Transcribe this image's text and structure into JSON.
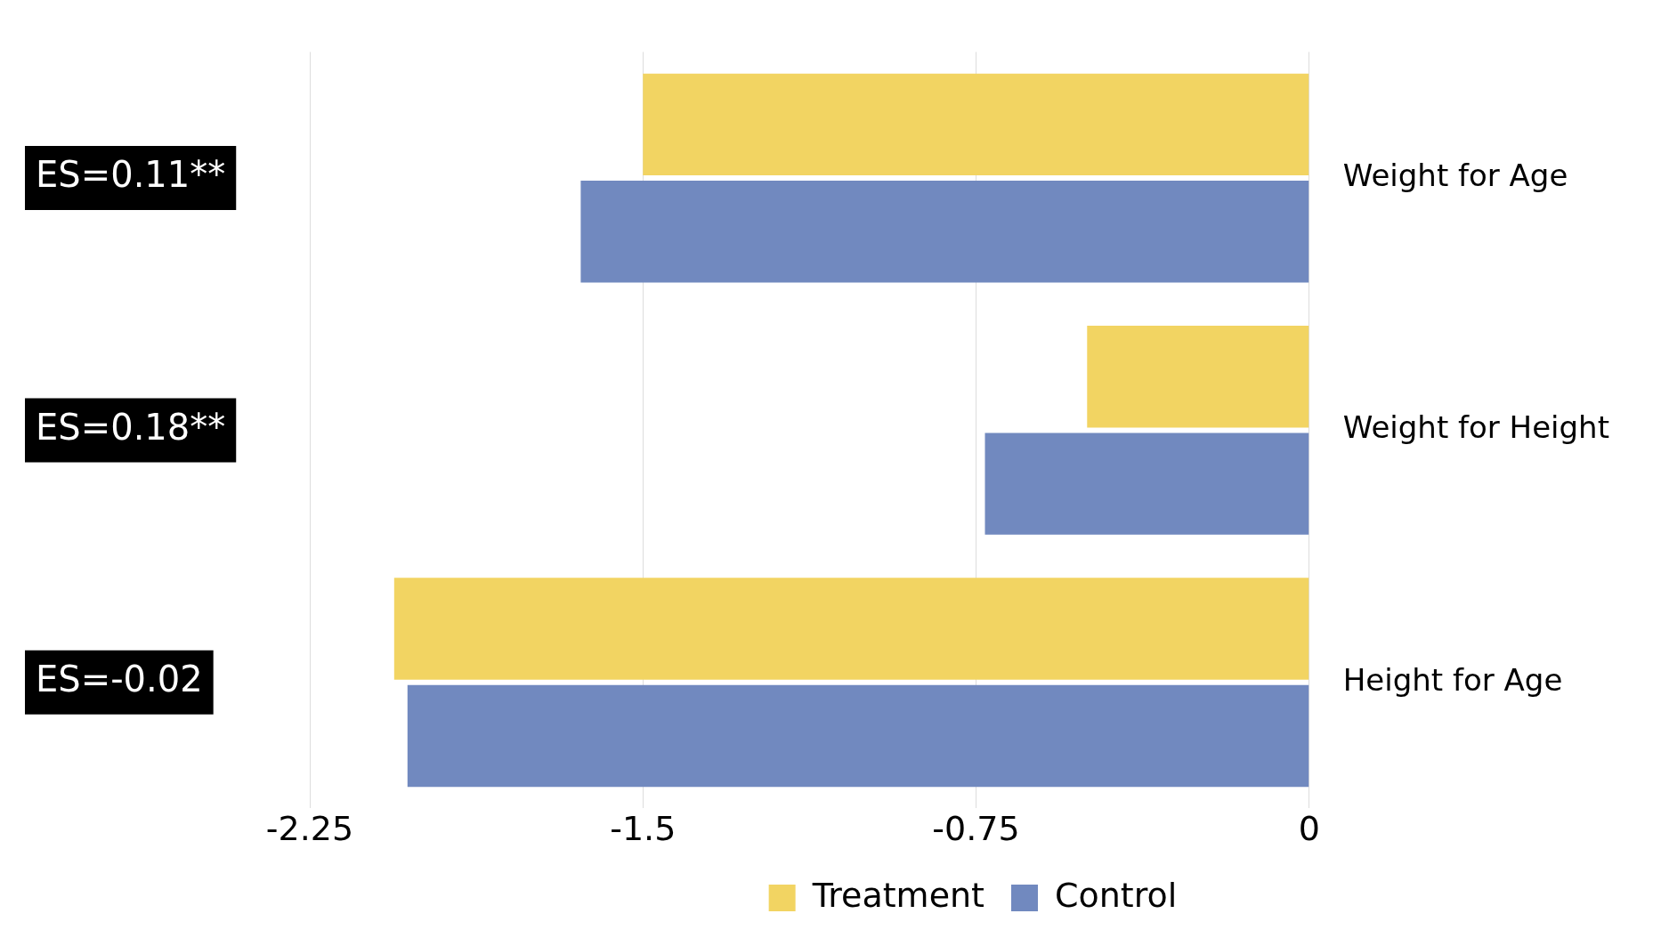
{
  "chart_data": {
    "type": "bar",
    "orientation": "horizontal",
    "categories": [
      "Weight for Age",
      "Weight for Height",
      "Height for Age"
    ],
    "series": [
      {
        "name": "Treatment",
        "color": "#f2d462",
        "values": [
          -1.5,
          -0.5,
          -2.06
        ]
      },
      {
        "name": "Control",
        "color": "#7189bf",
        "values": [
          -1.64,
          -0.73,
          -2.03
        ]
      }
    ],
    "xlim": [
      -2.25,
      0
    ],
    "xticks": [
      -2.25,
      -1.5,
      -0.75,
      0
    ],
    "grid": "x",
    "legend": "bottom",
    "annotations": [
      "ES=0.11**",
      "ES=0.18**",
      "ES=-0.02"
    ]
  }
}
